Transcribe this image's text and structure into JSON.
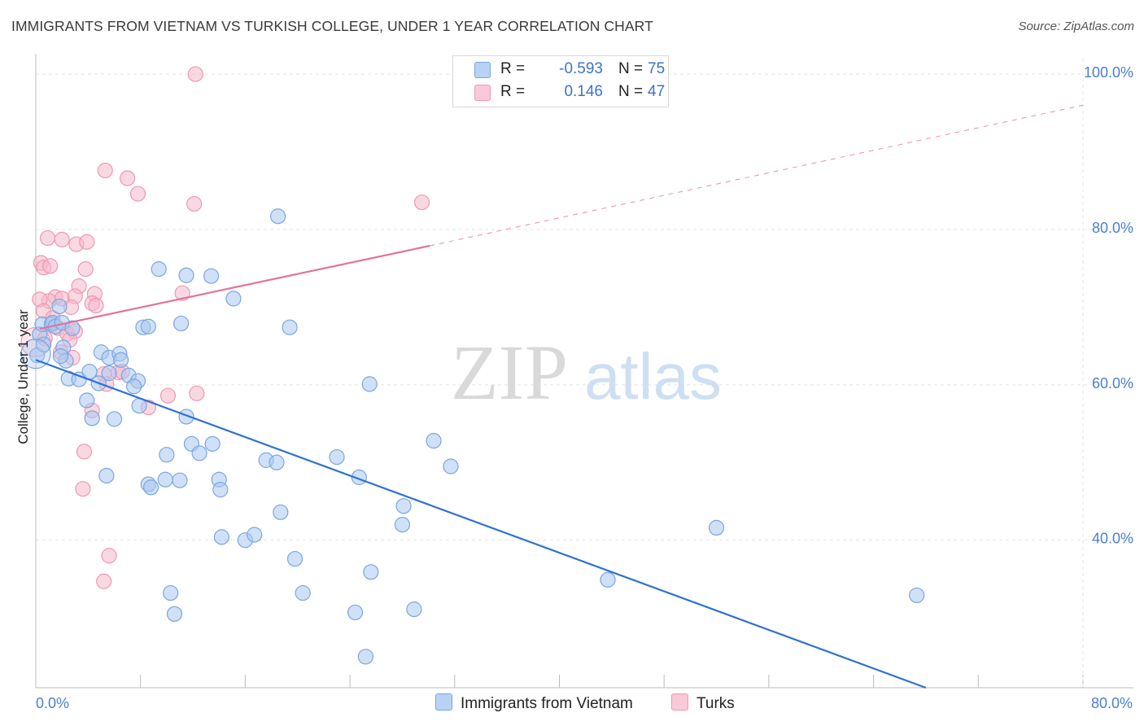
{
  "title": "IMMIGRANTS FROM VIETNAM VS TURKISH COLLEGE, UNDER 1 YEAR CORRELATION CHART",
  "source": "Source: ZipAtlas.com",
  "watermark": {
    "zip": "ZIP",
    "atlas": "atlas"
  },
  "colors": {
    "blue_fill": "#a9c8f0",
    "blue_stroke": "#7aa6df",
    "blue_line": "#2f72d2",
    "pink_fill": "#f6b8cb",
    "pink_stroke": "#ee98b4",
    "pink_line": "#e4729a",
    "tick_text": "#4a7fd0",
    "grid": "#e4e4e4"
  },
  "legend": {
    "rows": [
      {
        "r_label": "R =",
        "r_value": "-0.593",
        "n_label": "N =",
        "n_value": "75"
      },
      {
        "r_label": "R =",
        "r_value": "0.146",
        "n_label": "N =",
        "n_value": "47"
      }
    ]
  },
  "bottom_legend": {
    "blue": "Immigrants from Vietnam",
    "pink": "Turks"
  },
  "chart_data": {
    "type": "scatter",
    "title": "IMMIGRANTS FROM VIETNAM VS TURKISH COLLEGE, UNDER 1 YEAR CORRELATION CHART",
    "xlabel": "",
    "ylabel": "College, Under 1 year",
    "xlim": [
      0,
      80
    ],
    "ylim": [
      21,
      102
    ],
    "x_tick_labels": [
      "0.0%",
      "80.0%"
    ],
    "y_tick_values": [
      40,
      60,
      80,
      100
    ],
    "y_tick_labels": [
      "40.0%",
      "60.0%",
      "80.0%",
      "100.0%"
    ],
    "grid": true,
    "series": [
      {
        "name": "Immigrants from Vietnam",
        "color": "blue",
        "trend": {
          "x": [
            0,
            68
          ],
          "y": [
            63.2,
            21
          ],
          "dashed_extension": false
        },
        "points": [
          [
            0.1,
            63.8
          ],
          [
            0.3,
            66.5
          ],
          [
            0.5,
            67.8
          ],
          [
            1.2,
            67.8
          ],
          [
            0.6,
            65.2
          ],
          [
            1.3,
            68.0
          ],
          [
            1.8,
            70.1
          ],
          [
            1.5,
            67.5
          ],
          [
            2.0,
            68.0
          ],
          [
            2.8,
            67.3
          ],
          [
            2.1,
            64.8
          ],
          [
            2.3,
            63.1
          ],
          [
            2.5,
            60.8
          ],
          [
            1.9,
            63.7
          ],
          [
            3.3,
            60.7
          ],
          [
            3.9,
            58.0
          ],
          [
            4.1,
            61.7
          ],
          [
            4.8,
            60.2
          ],
          [
            5.0,
            64.2
          ],
          [
            5.6,
            63.5
          ],
          [
            4.3,
            55.7
          ],
          [
            6.0,
            55.6
          ],
          [
            5.6,
            61.5
          ],
          [
            7.1,
            61.2
          ],
          [
            7.8,
            60.5
          ],
          [
            6.4,
            64.0
          ],
          [
            6.5,
            63.2
          ],
          [
            7.5,
            59.8
          ],
          [
            7.9,
            57.3
          ],
          [
            8.2,
            67.4
          ],
          [
            8.6,
            67.5
          ],
          [
            9.4,
            74.9
          ],
          [
            11.1,
            67.9
          ],
          [
            11.5,
            74.1
          ],
          [
            13.4,
            74.0
          ],
          [
            15.1,
            71.1
          ],
          [
            11.5,
            55.9
          ],
          [
            11.9,
            52.4
          ],
          [
            12.5,
            51.2
          ],
          [
            13.5,
            52.4
          ],
          [
            10.0,
            51.0
          ],
          [
            5.4,
            48.3
          ],
          [
            8.6,
            47.2
          ],
          [
            8.8,
            46.8
          ],
          [
            9.9,
            47.8
          ],
          [
            11.0,
            47.7
          ],
          [
            14.0,
            47.8
          ],
          [
            14.1,
            46.5
          ],
          [
            17.6,
            50.3
          ],
          [
            18.4,
            50.0
          ],
          [
            18.7,
            43.6
          ],
          [
            23.0,
            50.7
          ],
          [
            24.7,
            48.1
          ],
          [
            25.5,
            60.1
          ],
          [
            28.1,
            44.4
          ],
          [
            28.0,
            42.0
          ],
          [
            30.4,
            52.8
          ],
          [
            31.7,
            49.5
          ],
          [
            19.4,
            67.4
          ],
          [
            18.5,
            81.7
          ],
          [
            14.2,
            40.4
          ],
          [
            16.0,
            40.0
          ],
          [
            16.7,
            40.7
          ],
          [
            19.8,
            37.6
          ],
          [
            20.4,
            33.2
          ],
          [
            10.3,
            33.2
          ],
          [
            10.6,
            30.5
          ],
          [
            24.4,
            30.7
          ],
          [
            25.2,
            25.0
          ],
          [
            25.6,
            35.9
          ],
          [
            28.9,
            31.1
          ],
          [
            43.7,
            34.9
          ],
          [
            52.0,
            41.6
          ],
          [
            67.3,
            32.9
          ],
          [
            0.0,
            64.0
          ]
        ]
      },
      {
        "name": "Turks",
        "color": "pink",
        "trend": {
          "x": [
            0.3,
            30.1
          ],
          "y": [
            67.2,
            77.9
          ],
          "dashed_extension": true,
          "dash_to": [
            80,
            96
          ]
        },
        "points": [
          [
            12.2,
            100.0
          ],
          [
            5.3,
            87.6
          ],
          [
            7.0,
            86.6
          ],
          [
            7.8,
            84.6
          ],
          [
            12.1,
            83.3
          ],
          [
            29.5,
            83.5
          ],
          [
            0.9,
            78.9
          ],
          [
            2.0,
            78.7
          ],
          [
            3.1,
            78.1
          ],
          [
            3.9,
            78.4
          ],
          [
            0.4,
            75.7
          ],
          [
            0.6,
            75.1
          ],
          [
            1.1,
            75.3
          ],
          [
            3.8,
            74.9
          ],
          [
            3.3,
            72.7
          ],
          [
            1.5,
            71.3
          ],
          [
            1.0,
            70.8
          ],
          [
            2.0,
            71.1
          ],
          [
            3.0,
            71.4
          ],
          [
            4.5,
            71.7
          ],
          [
            4.3,
            70.5
          ],
          [
            4.6,
            70.2
          ],
          [
            11.2,
            71.8
          ],
          [
            2.7,
            70.0
          ],
          [
            0.3,
            71.0
          ],
          [
            0.6,
            69.5
          ],
          [
            1.3,
            68.6
          ],
          [
            1.7,
            67.3
          ],
          [
            2.4,
            66.6
          ],
          [
            3.0,
            66.9
          ],
          [
            0.0,
            65.5
          ],
          [
            0.7,
            66.0
          ],
          [
            2.6,
            65.8
          ],
          [
            2.8,
            63.5
          ],
          [
            1.9,
            64.2
          ],
          [
            6.3,
            61.6
          ],
          [
            6.6,
            61.7
          ],
          [
            5.2,
            61.4
          ],
          [
            5.4,
            60.1
          ],
          [
            8.6,
            57.1
          ],
          [
            10.1,
            58.6
          ],
          [
            12.3,
            58.9
          ],
          [
            4.3,
            56.7
          ],
          [
            3.7,
            51.4
          ],
          [
            3.6,
            46.6
          ],
          [
            5.6,
            38.0
          ],
          [
            5.2,
            34.7
          ]
        ]
      }
    ]
  }
}
